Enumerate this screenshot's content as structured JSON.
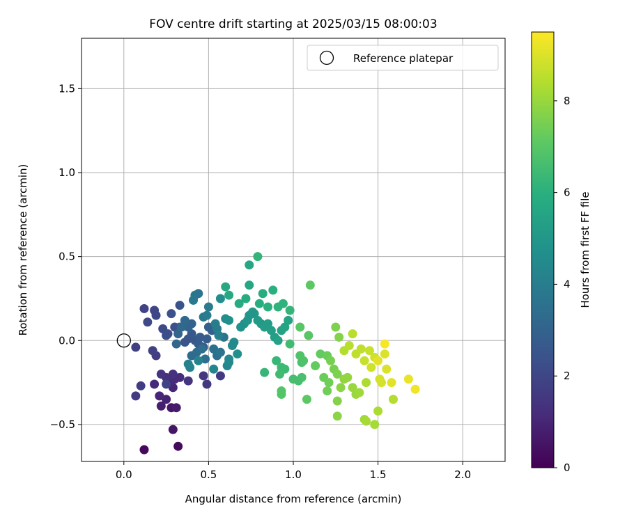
{
  "chart_data": {
    "type": "scatter",
    "title": "FOV centre drift starting at 2025/03/15 08:00:03",
    "xlabel": "Angular distance from reference (arcmin)",
    "ylabel": "Rotation from reference (arcmin)",
    "xlim": [
      -0.25,
      2.25
    ],
    "ylim": [
      -0.72,
      1.8
    ],
    "xticks": [
      0.0,
      0.5,
      1.0,
      1.5,
      2.0
    ],
    "xtick_labels": [
      "0.0",
      "0.5",
      "1.0",
      "1.5",
      "2.0"
    ],
    "yticks": [
      -0.5,
      0.0,
      0.5,
      1.0,
      1.5
    ],
    "ytick_labels": [
      "−0.5",
      "0.0",
      "0.5",
      "1.0",
      "1.5"
    ],
    "grid": true,
    "legend": {
      "position": "top-right",
      "entries": [
        "Reference platepar"
      ]
    },
    "reference_point": {
      "label": "Reference platepar",
      "x": 0.0,
      "y": 0.0
    },
    "colorbar": {
      "label": "Hours from first FF file",
      "colormap": "viridis",
      "range": [
        0,
        9.5
      ],
      "ticks": [
        0,
        2,
        4,
        6,
        8
      ],
      "tick_labels": [
        "0",
        "2",
        "4",
        "6",
        "8"
      ]
    },
    "points": [
      {
        "x": 0.12,
        "y": -0.65,
        "c": 0.2
      },
      {
        "x": 0.32,
        "y": -0.63,
        "c": 0.3
      },
      {
        "x": 0.29,
        "y": -0.53,
        "c": 0.5
      },
      {
        "x": 0.28,
        "y": -0.4,
        "c": 0.6
      },
      {
        "x": 0.31,
        "y": -0.4,
        "c": 0.7
      },
      {
        "x": 0.22,
        "y": -0.39,
        "c": 0.8
      },
      {
        "x": 0.25,
        "y": -0.35,
        "c": 0.9
      },
      {
        "x": 0.21,
        "y": -0.33,
        "c": 1.0
      },
      {
        "x": 0.29,
        "y": -0.28,
        "c": 1.0
      },
      {
        "x": 0.27,
        "y": -0.25,
        "c": 1.1
      },
      {
        "x": 0.18,
        "y": -0.26,
        "c": 1.1
      },
      {
        "x": 0.3,
        "y": -0.23,
        "c": 1.2
      },
      {
        "x": 0.33,
        "y": -0.22,
        "c": 1.2
      },
      {
        "x": 0.29,
        "y": -0.2,
        "c": 1.3
      },
      {
        "x": 0.25,
        "y": -0.22,
        "c": 1.3
      },
      {
        "x": 0.22,
        "y": -0.2,
        "c": 1.4
      },
      {
        "x": 0.38,
        "y": -0.24,
        "c": 1.4
      },
      {
        "x": 0.47,
        "y": -0.21,
        "c": 1.5
      },
      {
        "x": 0.49,
        "y": -0.26,
        "c": 1.5
      },
      {
        "x": 0.57,
        "y": -0.21,
        "c": 1.6
      },
      {
        "x": 0.07,
        "y": -0.33,
        "c": 1.6
      },
      {
        "x": 0.1,
        "y": -0.27,
        "c": 1.7
      },
      {
        "x": 0.19,
        "y": -0.09,
        "c": 1.7
      },
      {
        "x": 0.17,
        "y": -0.06,
        "c": 1.8
      },
      {
        "x": 0.07,
        "y": -0.04,
        "c": 1.8
      },
      {
        "x": 0.25,
        "y": -0.26,
        "c": 1.9
      },
      {
        "x": 0.12,
        "y": 0.19,
        "c": 1.9
      },
      {
        "x": 0.18,
        "y": 0.18,
        "c": 2.0
      },
      {
        "x": 0.19,
        "y": 0.15,
        "c": 2.0
      },
      {
        "x": 0.14,
        "y": 0.11,
        "c": 2.1
      },
      {
        "x": 0.23,
        "y": 0.07,
        "c": 2.1
      },
      {
        "x": 0.25,
        "y": 0.03,
        "c": 2.2
      },
      {
        "x": 0.26,
        "y": 0.04,
        "c": 2.2
      },
      {
        "x": 0.28,
        "y": 0.16,
        "c": 2.3
      },
      {
        "x": 0.3,
        "y": 0.08,
        "c": 2.3
      },
      {
        "x": 0.33,
        "y": 0.08,
        "c": 2.4
      },
      {
        "x": 0.33,
        "y": 0.21,
        "c": 2.4
      },
      {
        "x": 0.36,
        "y": -0.01,
        "c": 2.5
      },
      {
        "x": 0.38,
        "y": 0.01,
        "c": 2.5
      },
      {
        "x": 0.4,
        "y": 0.04,
        "c": 2.6
      },
      {
        "x": 0.42,
        "y": 0.0,
        "c": 2.6
      },
      {
        "x": 0.44,
        "y": -0.02,
        "c": 2.7
      },
      {
        "x": 0.45,
        "y": 0.02,
        "c": 2.7
      },
      {
        "x": 0.47,
        "y": -0.04,
        "c": 2.8
      },
      {
        "x": 0.49,
        "y": 0.01,
        "c": 2.8
      },
      {
        "x": 0.5,
        "y": 0.08,
        "c": 2.9
      },
      {
        "x": 0.52,
        "y": 0.06,
        "c": 2.9
      },
      {
        "x": 0.38,
        "y": 0.08,
        "c": 3.0
      },
      {
        "x": 0.4,
        "y": 0.1,
        "c": 3.0
      },
      {
        "x": 0.31,
        "y": -0.02,
        "c": 3.1
      },
      {
        "x": 0.32,
        "y": 0.04,
        "c": 3.1
      },
      {
        "x": 0.34,
        "y": 0.08,
        "c": 3.2
      },
      {
        "x": 0.36,
        "y": 0.12,
        "c": 3.2
      },
      {
        "x": 0.4,
        "y": -0.09,
        "c": 3.3
      },
      {
        "x": 0.43,
        "y": -0.07,
        "c": 3.3
      },
      {
        "x": 0.46,
        "y": -0.05,
        "c": 3.4
      },
      {
        "x": 0.48,
        "y": -0.11,
        "c": 3.4
      },
      {
        "x": 0.53,
        "y": -0.05,
        "c": 3.5
      },
      {
        "x": 0.55,
        "y": -0.09,
        "c": 3.5
      },
      {
        "x": 0.57,
        "y": -0.07,
        "c": 3.6
      },
      {
        "x": 0.59,
        "y": 0.02,
        "c": 3.6
      },
      {
        "x": 0.42,
        "y": 0.27,
        "c": 3.7
      },
      {
        "x": 0.44,
        "y": 0.28,
        "c": 3.7
      },
      {
        "x": 0.41,
        "y": 0.24,
        "c": 3.8
      },
      {
        "x": 0.47,
        "y": 0.14,
        "c": 3.8
      },
      {
        "x": 0.49,
        "y": 0.15,
        "c": 3.9
      },
      {
        "x": 0.5,
        "y": 0.2,
        "c": 3.9
      },
      {
        "x": 0.54,
        "y": 0.1,
        "c": 4.0
      },
      {
        "x": 0.55,
        "y": 0.07,
        "c": 4.0
      },
      {
        "x": 0.56,
        "y": 0.03,
        "c": 4.1
      },
      {
        "x": 0.38,
        "y": -0.14,
        "c": 4.1
      },
      {
        "x": 0.39,
        "y": -0.16,
        "c": 4.2
      },
      {
        "x": 0.44,
        "y": -0.12,
        "c": 4.2
      },
      {
        "x": 0.53,
        "y": -0.17,
        "c": 4.3
      },
      {
        "x": 0.61,
        "y": -0.15,
        "c": 4.3
      },
      {
        "x": 0.62,
        "y": -0.13,
        "c": 4.4
      },
      {
        "x": 0.62,
        "y": -0.11,
        "c": 4.4
      },
      {
        "x": 0.64,
        "y": -0.03,
        "c": 4.5
      },
      {
        "x": 0.65,
        "y": -0.01,
        "c": 4.5
      },
      {
        "x": 0.57,
        "y": 0.25,
        "c": 4.6
      },
      {
        "x": 0.6,
        "y": 0.13,
        "c": 4.6
      },
      {
        "x": 0.62,
        "y": 0.12,
        "c": 4.7
      },
      {
        "x": 0.67,
        "y": -0.08,
        "c": 4.7
      },
      {
        "x": 0.69,
        "y": 0.08,
        "c": 4.8
      },
      {
        "x": 0.71,
        "y": 0.1,
        "c": 4.8
      },
      {
        "x": 0.73,
        "y": 0.12,
        "c": 4.9
      },
      {
        "x": 0.74,
        "y": 0.15,
        "c": 4.9
      },
      {
        "x": 0.76,
        "y": 0.17,
        "c": 5.0
      },
      {
        "x": 0.77,
        "y": 0.16,
        "c": 5.0
      },
      {
        "x": 0.79,
        "y": 0.12,
        "c": 5.1
      },
      {
        "x": 0.81,
        "y": 0.1,
        "c": 5.1
      },
      {
        "x": 0.83,
        "y": 0.08,
        "c": 5.2
      },
      {
        "x": 0.85,
        "y": 0.1,
        "c": 5.2
      },
      {
        "x": 0.87,
        "y": 0.06,
        "c": 5.3
      },
      {
        "x": 0.89,
        "y": 0.02,
        "c": 5.3
      },
      {
        "x": 0.91,
        "y": 0.0,
        "c": 5.4
      },
      {
        "x": 0.93,
        "y": 0.06,
        "c": 5.4
      },
      {
        "x": 0.95,
        "y": 0.08,
        "c": 5.5
      },
      {
        "x": 0.97,
        "y": 0.12,
        "c": 5.5
      },
      {
        "x": 0.74,
        "y": 0.45,
        "c": 5.6
      },
      {
        "x": 0.74,
        "y": 0.33,
        "c": 5.6
      },
      {
        "x": 0.6,
        "y": 0.32,
        "c": 5.7
      },
      {
        "x": 0.62,
        "y": 0.27,
        "c": 5.7
      },
      {
        "x": 0.68,
        "y": 0.22,
        "c": 5.8
      },
      {
        "x": 0.72,
        "y": 0.25,
        "c": 5.8
      },
      {
        "x": 0.8,
        "y": 0.22,
        "c": 5.9
      },
      {
        "x": 0.82,
        "y": 0.28,
        "c": 5.9
      },
      {
        "x": 0.85,
        "y": 0.2,
        "c": 6.0
      },
      {
        "x": 0.88,
        "y": 0.3,
        "c": 6.0
      },
      {
        "x": 0.91,
        "y": 0.2,
        "c": 6.1
      },
      {
        "x": 0.94,
        "y": 0.22,
        "c": 6.1
      },
      {
        "x": 0.98,
        "y": 0.18,
        "c": 6.2
      },
      {
        "x": 0.79,
        "y": 0.5,
        "c": 6.2
      },
      {
        "x": 0.83,
        "y": -0.19,
        "c": 6.3
      },
      {
        "x": 0.9,
        "y": -0.12,
        "c": 6.3
      },
      {
        "x": 0.93,
        "y": -0.16,
        "c": 6.4
      },
      {
        "x": 0.95,
        "y": -0.17,
        "c": 6.4
      },
      {
        "x": 0.92,
        "y": -0.2,
        "c": 6.5
      },
      {
        "x": 0.98,
        "y": -0.02,
        "c": 6.5
      },
      {
        "x": 1.0,
        "y": -0.23,
        "c": 6.6
      },
      {
        "x": 1.03,
        "y": -0.24,
        "c": 6.6
      },
      {
        "x": 1.05,
        "y": -0.22,
        "c": 6.7
      },
      {
        "x": 1.05,
        "y": -0.13,
        "c": 6.7
      },
      {
        "x": 1.04,
        "y": -0.09,
        "c": 6.8
      },
      {
        "x": 1.06,
        "y": -0.12,
        "c": 6.8
      },
      {
        "x": 0.93,
        "y": -0.3,
        "c": 6.9
      },
      {
        "x": 0.93,
        "y": -0.32,
        "c": 6.9
      },
      {
        "x": 1.04,
        "y": 0.08,
        "c": 7.0
      },
      {
        "x": 1.09,
        "y": 0.03,
        "c": 7.0
      },
      {
        "x": 1.1,
        "y": 0.33,
        "c": 7.1
      },
      {
        "x": 1.08,
        "y": -0.35,
        "c": 7.1
      },
      {
        "x": 1.13,
        "y": -0.15,
        "c": 7.2
      },
      {
        "x": 1.16,
        "y": -0.08,
        "c": 7.2
      },
      {
        "x": 1.18,
        "y": -0.22,
        "c": 7.3
      },
      {
        "x": 1.2,
        "y": -0.09,
        "c": 7.3
      },
      {
        "x": 1.21,
        "y": -0.25,
        "c": 7.4
      },
      {
        "x": 1.2,
        "y": -0.3,
        "c": 7.4
      },
      {
        "x": 1.22,
        "y": -0.12,
        "c": 7.5
      },
      {
        "x": 1.24,
        "y": -0.17,
        "c": 7.5
      },
      {
        "x": 1.25,
        "y": 0.08,
        "c": 7.6
      },
      {
        "x": 1.26,
        "y": -0.2,
        "c": 7.6
      },
      {
        "x": 1.27,
        "y": 0.02,
        "c": 7.7
      },
      {
        "x": 1.26,
        "y": -0.36,
        "c": 7.7
      },
      {
        "x": 1.26,
        "y": -0.45,
        "c": 7.8
      },
      {
        "x": 1.28,
        "y": -0.28,
        "c": 7.8
      },
      {
        "x": 1.3,
        "y": -0.23,
        "c": 7.9
      },
      {
        "x": 1.32,
        "y": -0.22,
        "c": 7.9
      },
      {
        "x": 1.35,
        "y": -0.28,
        "c": 8.0
      },
      {
        "x": 1.37,
        "y": -0.32,
        "c": 8.0
      },
      {
        "x": 1.39,
        "y": -0.31,
        "c": 8.1
      },
      {
        "x": 1.42,
        "y": -0.47,
        "c": 8.1
      },
      {
        "x": 1.43,
        "y": -0.48,
        "c": 8.2
      },
      {
        "x": 1.48,
        "y": -0.5,
        "c": 8.2
      },
      {
        "x": 1.5,
        "y": -0.42,
        "c": 8.3
      },
      {
        "x": 1.43,
        "y": -0.25,
        "c": 8.3
      },
      {
        "x": 1.59,
        "y": -0.35,
        "c": 8.4
      },
      {
        "x": 1.3,
        "y": -0.06,
        "c": 8.4
      },
      {
        "x": 1.33,
        "y": -0.03,
        "c": 8.5
      },
      {
        "x": 1.35,
        "y": 0.04,
        "c": 8.5
      },
      {
        "x": 1.37,
        "y": -0.08,
        "c": 8.6
      },
      {
        "x": 1.4,
        "y": -0.05,
        "c": 8.6
      },
      {
        "x": 1.42,
        "y": -0.12,
        "c": 8.7
      },
      {
        "x": 1.45,
        "y": -0.06,
        "c": 8.7
      },
      {
        "x": 1.46,
        "y": -0.16,
        "c": 8.8
      },
      {
        "x": 1.48,
        "y": -0.1,
        "c": 8.8
      },
      {
        "x": 1.51,
        "y": -0.23,
        "c": 8.9
      },
      {
        "x": 1.52,
        "y": -0.25,
        "c": 8.9
      },
      {
        "x": 1.54,
        "y": -0.08,
        "c": 9.0
      },
      {
        "x": 1.55,
        "y": -0.17,
        "c": 9.0
      },
      {
        "x": 1.58,
        "y": -0.25,
        "c": 9.1
      },
      {
        "x": 1.5,
        "y": -0.12,
        "c": 9.1
      },
      {
        "x": 1.68,
        "y": -0.23,
        "c": 9.2
      },
      {
        "x": 1.72,
        "y": -0.29,
        "c": 9.3
      },
      {
        "x": 1.54,
        "y": -0.02,
        "c": 9.4
      }
    ]
  }
}
